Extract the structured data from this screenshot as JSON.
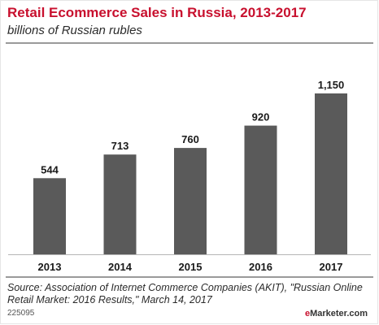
{
  "header": {
    "title": "Retail Ecommerce Sales in Russia, 2013-2017",
    "subtitle": "billions of Russian rubles"
  },
  "chart_data": {
    "type": "bar",
    "title": "Retail Ecommerce Sales in Russia, 2013-2017",
    "subtitle": "billions of Russian rubles",
    "categories": [
      "2013",
      "2014",
      "2015",
      "2016",
      "2017"
    ],
    "values": [
      544,
      713,
      760,
      920,
      1150
    ],
    "value_labels": [
      "544",
      "713",
      "760",
      "920",
      "1,150"
    ],
    "xlabel": "",
    "ylabel": "",
    "ylim": [
      0,
      1200
    ],
    "grid": false,
    "legend": "none",
    "bar_color": "#5a5a5a"
  },
  "footer": {
    "source": "Source: Association of Internet Commerce Companies (AKIT), \"Russian Online Retail Market: 2016 Results,\" March 14, 2017",
    "chart_id": "225095",
    "brand_e": "e",
    "brand_rest": "Marketer.com"
  },
  "colors": {
    "title": "#c8102e",
    "bar": "#5a5a5a",
    "rule": "#9a9a9a",
    "axis": "#b5b5b5"
  }
}
